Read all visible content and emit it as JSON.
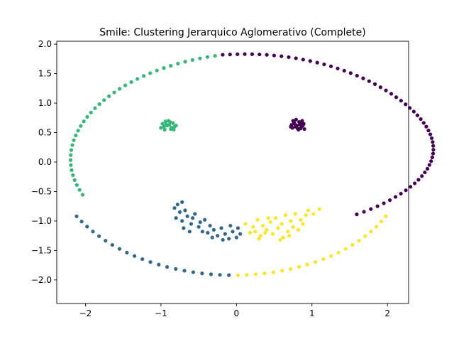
{
  "chart_data": {
    "type": "scatter",
    "title": "Smile: Clustering Jerarquico Aglomerativo (Complete)",
    "xlabel": "",
    "ylabel": "",
    "xlim": [
      -2.38,
      2.28
    ],
    "ylim": [
      -2.4,
      2.05
    ],
    "xticks": [
      -2,
      -1,
      0,
      1,
      2
    ],
    "yticks": [
      -2.0,
      -1.5,
      -1.0,
      -0.5,
      0.0,
      0.5,
      1.0,
      1.5,
      2.0
    ],
    "xtick_labels": [
      "−2",
      "−1",
      "0",
      "1",
      "2"
    ],
    "ytick_labels": [
      "−2.0",
      "−1.5",
      "−1.0",
      "−0.5",
      "0.0",
      "0.5",
      "1.0",
      "1.5",
      "2.0"
    ],
    "grid": false,
    "legend": "none",
    "colors": {
      "c0": "#440154",
      "c1": "#31688e",
      "c2": "#35b779",
      "c3": "#fde725"
    },
    "series": [
      {
        "color_key": "c0",
        "points": [
          [
            -0.182,
            1.82
          ],
          [
            -0.085,
            1.825
          ],
          [
            0.013,
            1.829
          ],
          [
            0.11,
            1.831
          ],
          [
            0.208,
            1.83
          ],
          [
            0.305,
            1.826
          ],
          [
            0.402,
            1.819
          ],
          [
            0.499,
            1.808
          ],
          [
            0.596,
            1.795
          ],
          [
            0.692,
            1.779
          ],
          [
            0.788,
            1.761
          ],
          [
            0.883,
            1.739
          ],
          [
            0.977,
            1.714
          ],
          [
            1.07,
            1.687
          ],
          [
            1.161,
            1.657
          ],
          [
            1.252,
            1.624
          ],
          [
            1.341,
            1.588
          ],
          [
            1.428,
            1.55
          ],
          [
            1.513,
            1.509
          ],
          [
            1.597,
            1.466
          ],
          [
            1.678,
            1.42
          ],
          [
            1.757,
            1.372
          ],
          [
            1.834,
            1.322
          ],
          [
            1.908,
            1.269
          ],
          [
            1.98,
            1.215
          ],
          [
            2.05,
            1.158
          ],
          [
            2.116,
            1.1
          ],
          [
            2.18,
            1.041
          ],
          [
            2.24,
            0.98
          ],
          [
            2.296,
            0.918
          ],
          [
            2.349,
            0.856
          ],
          [
            2.397,
            0.793
          ],
          [
            2.441,
            0.729
          ],
          [
            2.48,
            0.665
          ],
          [
            2.514,
            0.601
          ],
          [
            2.543,
            0.536
          ],
          [
            2.567,
            0.471
          ],
          [
            2.586,
            0.405
          ],
          [
            2.599,
            0.34
          ],
          [
            2.606,
            0.275
          ],
          [
            2.608,
            0.209
          ],
          [
            2.604,
            0.144
          ],
          [
            2.594,
            0.08
          ],
          [
            2.578,
            0.015
          ],
          [
            2.556,
            -0.049
          ],
          [
            2.529,
            -0.113
          ],
          [
            2.495,
            -0.176
          ],
          [
            2.456,
            -0.238
          ],
          [
            2.411,
            -0.3
          ],
          [
            2.361,
            -0.361
          ],
          [
            2.305,
            -0.42
          ],
          [
            2.244,
            -0.479
          ],
          [
            2.178,
            -0.536
          ],
          [
            2.107,
            -0.592
          ],
          [
            2.032,
            -0.646
          ],
          [
            1.952,
            -0.699
          ],
          [
            1.868,
            -0.749
          ],
          [
            1.78,
            -0.798
          ],
          [
            1.689,
            -0.844
          ],
          [
            1.594,
            -0.888
          ],
          [
            0.78,
            0.6
          ],
          [
            0.85,
            0.66
          ],
          [
            0.82,
            0.55
          ],
          [
            0.76,
            0.68
          ],
          [
            0.88,
            0.62
          ],
          [
            0.74,
            0.58
          ],
          [
            0.9,
            0.56
          ],
          [
            0.79,
            0.72
          ],
          [
            0.84,
            0.64
          ],
          [
            0.73,
            0.63
          ],
          [
            0.87,
            0.7
          ],
          [
            0.81,
            0.57
          ],
          [
            0.77,
            0.65
          ],
          [
            0.86,
            0.6
          ],
          [
            0.75,
            0.7
          ],
          [
            0.83,
            0.68
          ],
          [
            0.89,
            0.65
          ],
          [
            0.8,
            0.62
          ],
          [
            0.72,
            0.6
          ],
          [
            0.85,
            0.57
          ]
        ]
      },
      {
        "color_key": "c1",
        "points": [
          [
            -2.117,
            -0.92
          ],
          [
            -2.05,
            -1.009
          ],
          [
            -1.978,
            -1.096
          ],
          [
            -1.901,
            -1.179
          ],
          [
            -1.82,
            -1.258
          ],
          [
            -1.734,
            -1.334
          ],
          [
            -1.644,
            -1.406
          ],
          [
            -1.549,
            -1.473
          ],
          [
            -1.451,
            -1.536
          ],
          [
            -1.35,
            -1.594
          ],
          [
            -1.246,
            -1.647
          ],
          [
            -1.139,
            -1.696
          ],
          [
            -1.029,
            -1.74
          ],
          [
            -0.918,
            -1.78
          ],
          [
            -0.804,
            -1.814
          ],
          [
            -0.689,
            -1.844
          ],
          [
            -0.572,
            -1.869
          ],
          [
            -0.455,
            -1.889
          ],
          [
            -0.337,
            -1.904
          ],
          [
            -0.218,
            -1.914
          ],
          [
            -0.1,
            -1.919
          ],
          [
            -0.78,
            -0.72
          ],
          [
            -0.72,
            -0.68
          ],
          [
            -0.82,
            -0.78
          ],
          [
            -0.75,
            -0.85
          ],
          [
            -0.68,
            -0.82
          ],
          [
            -0.8,
            -0.95
          ],
          [
            -0.72,
            -1.0
          ],
          [
            -0.65,
            -0.92
          ],
          [
            -0.6,
            -1.05
          ],
          [
            -0.55,
            -0.88
          ],
          [
            -0.5,
            -1.1
          ],
          [
            -0.45,
            -1.18
          ],
          [
            -0.42,
            -0.98
          ],
          [
            -0.38,
            -1.2
          ],
          [
            -0.35,
            -1.08
          ],
          [
            -0.3,
            -1.15
          ],
          [
            -0.25,
            -1.25
          ],
          [
            -0.2,
            -1.12
          ],
          [
            -0.15,
            -1.22
          ],
          [
            -0.1,
            -1.3
          ],
          [
            -0.05,
            -1.18
          ],
          [
            0.0,
            -1.28
          ],
          [
            0.05,
            -1.22
          ],
          [
            -0.7,
            -1.12
          ],
          [
            -0.62,
            -1.18
          ],
          [
            -0.58,
            -0.95
          ],
          [
            -0.48,
            -1.02
          ],
          [
            -0.32,
            -1.28
          ],
          [
            -0.18,
            -1.32
          ],
          [
            -0.08,
            -1.08
          ],
          [
            0.02,
            -1.12
          ]
        ]
      },
      {
        "color_key": "c2",
        "points": [
          [
            -0.283,
            1.802
          ],
          [
            -0.384,
            1.782
          ],
          [
            -0.483,
            1.759
          ],
          [
            -0.582,
            1.732
          ],
          [
            -0.679,
            1.703
          ],
          [
            -0.775,
            1.67
          ],
          [
            -0.87,
            1.634
          ],
          [
            -0.962,
            1.595
          ],
          [
            -1.053,
            1.553
          ],
          [
            -1.142,
            1.508
          ],
          [
            -1.228,
            1.461
          ],
          [
            -1.312,
            1.41
          ],
          [
            -1.393,
            1.357
          ],
          [
            -1.472,
            1.301
          ],
          [
            -1.547,
            1.242
          ],
          [
            -1.619,
            1.181
          ],
          [
            -1.688,
            1.117
          ],
          [
            -1.753,
            1.051
          ],
          [
            -1.815,
            0.983
          ],
          [
            -1.873,
            0.913
          ],
          [
            -1.927,
            0.84
          ],
          [
            -1.976,
            0.766
          ],
          [
            -2.021,
            0.69
          ],
          [
            -2.062,
            0.612
          ],
          [
            -2.097,
            0.533
          ],
          [
            -2.128,
            0.452
          ],
          [
            -2.154,
            0.37
          ],
          [
            -2.173,
            0.287
          ],
          [
            -2.187,
            0.203
          ],
          [
            -2.195,
            0.118
          ],
          [
            -2.197,
            0.033
          ],
          [
            -2.193,
            -0.052
          ],
          [
            -2.183,
            -0.137
          ],
          [
            -2.166,
            -0.222
          ],
          [
            -2.143,
            -0.306
          ],
          [
            -2.114,
            -0.39
          ],
          [
            -2.078,
            -0.473
          ],
          [
            -2.037,
            -0.555
          ],
          [
            -0.92,
            0.62
          ],
          [
            -0.86,
            0.58
          ],
          [
            -0.95,
            0.55
          ],
          [
            -0.88,
            0.68
          ],
          [
            -0.82,
            0.6
          ],
          [
            -0.98,
            0.65
          ],
          [
            -0.9,
            0.7
          ],
          [
            -0.84,
            0.66
          ],
          [
            -0.96,
            0.6
          ],
          [
            -0.87,
            0.56
          ],
          [
            -0.93,
            0.64
          ],
          [
            -0.8,
            0.62
          ],
          [
            -1.0,
            0.58
          ],
          [
            -0.89,
            0.63
          ],
          [
            -0.94,
            0.69
          ],
          [
            -0.83,
            0.55
          ]
        ]
      },
      {
        "color_key": "c3",
        "points": [
          [
            0.019,
            -1.919
          ],
          [
            0.137,
            -1.914
          ],
          [
            0.255,
            -1.904
          ],
          [
            0.372,
            -1.889
          ],
          [
            0.489,
            -1.869
          ],
          [
            0.604,
            -1.844
          ],
          [
            0.717,
            -1.814
          ],
          [
            0.829,
            -1.78
          ],
          [
            0.938,
            -1.74
          ],
          [
            1.046,
            -1.696
          ],
          [
            1.151,
            -1.647
          ],
          [
            1.253,
            -1.594
          ],
          [
            1.351,
            -1.536
          ],
          [
            1.446,
            -1.473
          ],
          [
            1.537,
            -1.406
          ],
          [
            1.623,
            -1.334
          ],
          [
            1.705,
            -1.258
          ],
          [
            1.782,
            -1.179
          ],
          [
            1.853,
            -1.096
          ],
          [
            1.918,
            -1.009
          ],
          [
            1.977,
            -0.92
          ],
          [
            0.12,
            -1.05
          ],
          [
            0.18,
            -1.2
          ],
          [
            0.22,
            -1.1
          ],
          [
            0.28,
            -0.98
          ],
          [
            0.32,
            -1.25
          ],
          [
            0.35,
            -1.08
          ],
          [
            0.4,
            -1.15
          ],
          [
            0.45,
            -1.02
          ],
          [
            0.48,
            -1.22
          ],
          [
            0.52,
            -0.95
          ],
          [
            0.55,
            -1.12
          ],
          [
            0.6,
            -1.05
          ],
          [
            0.62,
            -1.28
          ],
          [
            0.65,
            -0.9
          ],
          [
            0.68,
            -1.18
          ],
          [
            0.72,
            -1.0
          ],
          [
            0.75,
            -1.1
          ],
          [
            0.78,
            -0.88
          ],
          [
            0.82,
            -1.15
          ],
          [
            0.85,
            -0.98
          ],
          [
            0.88,
            -1.05
          ],
          [
            0.92,
            -0.9
          ],
          [
            0.95,
            -0.82
          ],
          [
            1.02,
            -0.88
          ],
          [
            1.1,
            -0.8
          ],
          [
            0.3,
            -1.3
          ],
          [
            0.38,
            -1.2
          ],
          [
            0.58,
            -1.32
          ],
          [
            0.7,
            -1.25
          ],
          [
            0.25,
            -1.18
          ],
          [
            0.42,
            -0.95
          ]
        ]
      }
    ]
  }
}
